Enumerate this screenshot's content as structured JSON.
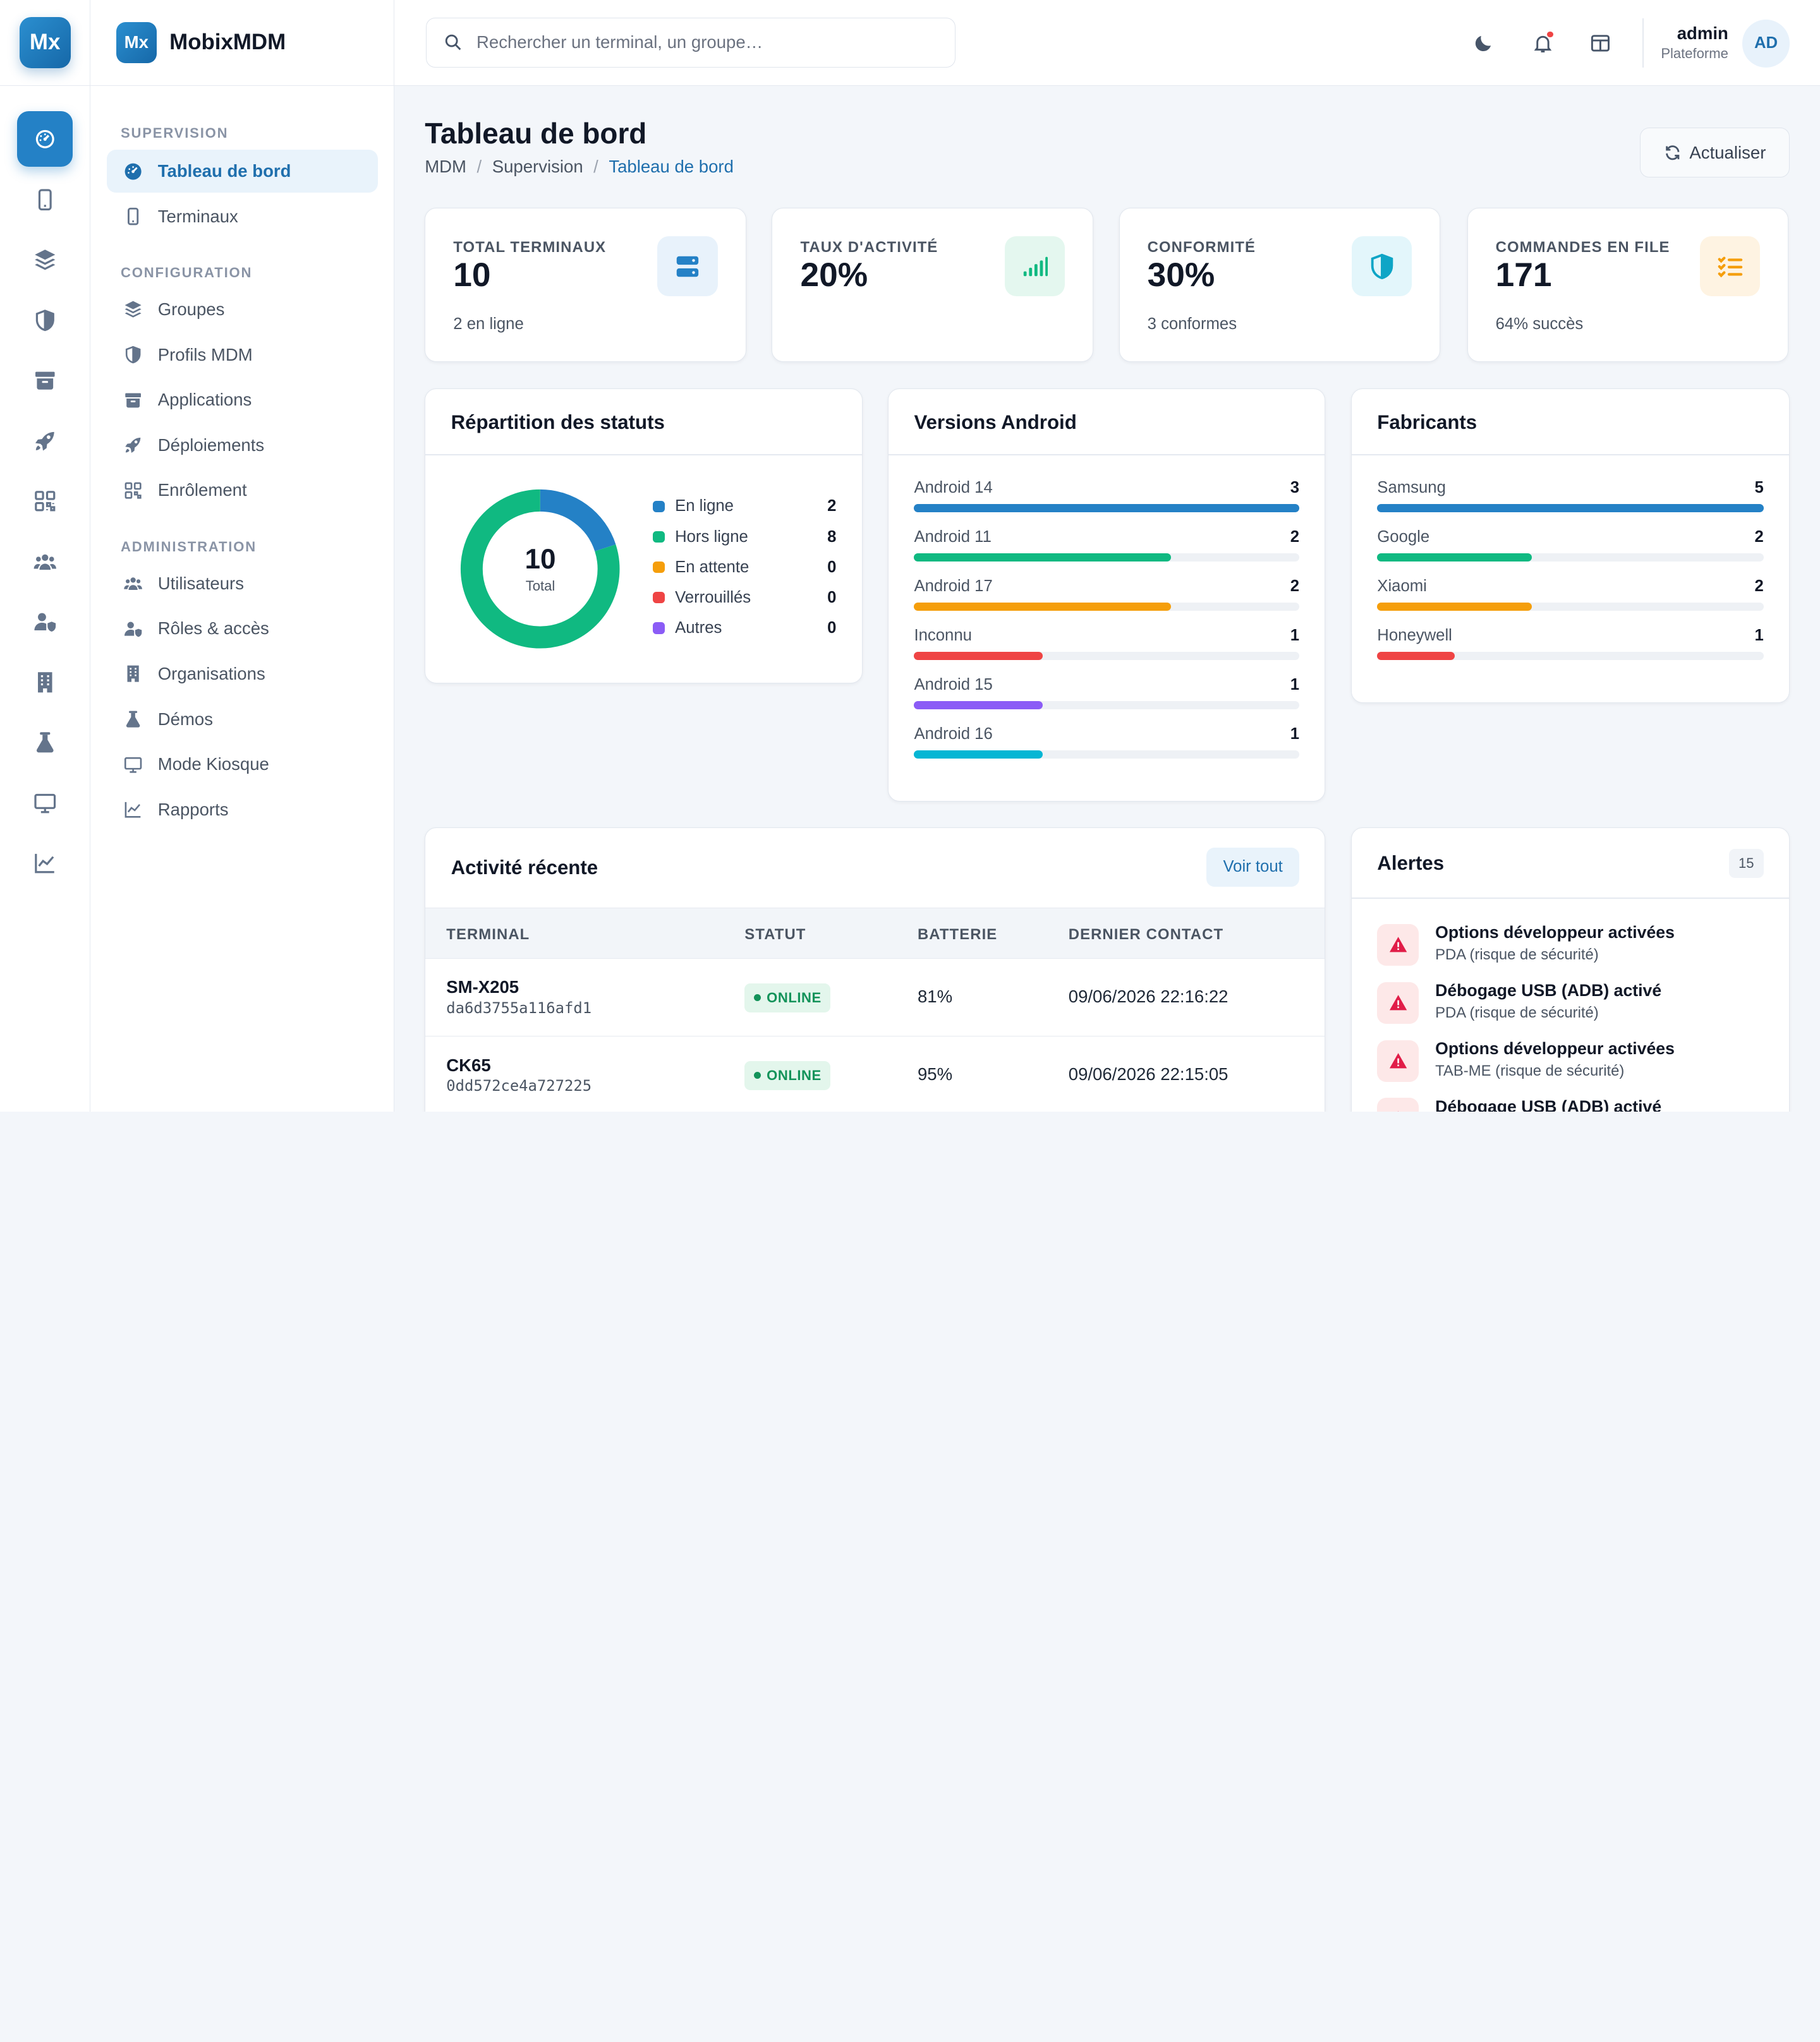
{
  "app": {
    "logo": "Mx",
    "name": "MobixMDM"
  },
  "nav": {
    "sections": [
      {
        "title": "SUPERVISION",
        "items": [
          "Tableau de bord",
          "Terminaux"
        ]
      },
      {
        "title": "CONFIGURATION",
        "items": [
          "Groupes",
          "Profils MDM",
          "Applications",
          "Déploiements",
          "Enrôlement"
        ]
      },
      {
        "title": "ADMINISTRATION",
        "items": [
          "Utilisateurs",
          "Rôles & accès",
          "Organisations",
          "Démos",
          "Mode Kiosque",
          "Rapports"
        ]
      }
    ],
    "active": "Tableau de bord"
  },
  "topbar": {
    "search_placeholder": "Rechercher un terminal, un groupe…",
    "icons": [
      "moon-icon",
      "bell-icon",
      "layout-icon"
    ],
    "user": {
      "name": "admin",
      "role": "Plateforme",
      "initials": "AD"
    }
  },
  "header": {
    "title": "Tableau de bord",
    "breadcrumb": [
      "MDM",
      "Supervision",
      "Tableau de bord"
    ],
    "refresh_label": "Actualiser"
  },
  "stats": [
    {
      "label": "TOTAL TERMINAUX",
      "value": "10",
      "sub": "2 en ligne",
      "icon": "server-icon",
      "color": "#2481c6",
      "bg": "#e8f2fb"
    },
    {
      "label": "TAUX D'ACTIVITÉ",
      "value": "20%",
      "sub": "",
      "icon": "signal-icon",
      "color": "#10b981",
      "bg": "#e4f7ef"
    },
    {
      "label": "CONFORMITÉ",
      "value": "30%",
      "sub": "3 conformes",
      "icon": "shield-icon",
      "color": "#0ea5c6",
      "bg": "#e3f6fb"
    },
    {
      "label": "COMMANDES EN FILE",
      "value": "171",
      "sub": "64% succès",
      "icon": "list-check-icon",
      "color": "#f59e0b",
      "bg": "#fef3e2"
    }
  ],
  "status_card": {
    "title": "Répartition des statuts",
    "total": "10",
    "total_label": "Total",
    "items": [
      {
        "label": "En ligne",
        "value": 2,
        "color": "#2481c6"
      },
      {
        "label": "Hors ligne",
        "value": 8,
        "color": "#10b981"
      },
      {
        "label": "En attente",
        "value": 0,
        "color": "#f59e0b"
      },
      {
        "label": "Verrouillés",
        "value": 0,
        "color": "#ef4444"
      },
      {
        "label": "Autres",
        "value": 0,
        "color": "#8b5cf6"
      }
    ]
  },
  "android_card": {
    "title": "Versions Android",
    "max": 3,
    "items": [
      {
        "label": "Android 14",
        "value": 3,
        "color": "#2481c6"
      },
      {
        "label": "Android 11",
        "value": 2,
        "color": "#10b981"
      },
      {
        "label": "Android 17",
        "value": 2,
        "color": "#f59e0b"
      },
      {
        "label": "Inconnu",
        "value": 1,
        "color": "#ef4444"
      },
      {
        "label": "Android 15",
        "value": 1,
        "color": "#8b5cf6"
      },
      {
        "label": "Android 16",
        "value": 1,
        "color": "#06b6d4"
      }
    ]
  },
  "maker_card": {
    "title": "Fabricants",
    "max": 5,
    "items": [
      {
        "label": "Samsung",
        "value": 5,
        "color": "#2481c6"
      },
      {
        "label": "Google",
        "value": 2,
        "color": "#10b981"
      },
      {
        "label": "Xiaomi",
        "value": 2,
        "color": "#f59e0b"
      },
      {
        "label": "Honeywell",
        "value": 1,
        "color": "#ef4444"
      }
    ]
  },
  "activity": {
    "title": "Activité récente",
    "view_all": "Voir tout",
    "columns": [
      "TERMINAL",
      "STATUT",
      "BATTERIE",
      "DERNIER CONTACT"
    ],
    "rows": [
      {
        "name": "SM-X205",
        "id": "da6d3755a116afd1",
        "status": "ONLINE",
        "battery": "81%",
        "last": "09/06/2026 22:16:22"
      },
      {
        "name": "CK65",
        "id": "0dd572ce4a727225",
        "status": "ONLINE",
        "battery": "95%",
        "last": "09/06/2026 22:15:05"
      }
    ]
  },
  "alerts": {
    "title": "Alertes",
    "count": "15",
    "items": [
      {
        "title": "Options développeur activées",
        "sub": "PDA (risque de sécurité)"
      },
      {
        "title": "Débogage USB (ADB) activé",
        "sub": "PDA (risque de sécurité)"
      },
      {
        "title": "Options développeur activées",
        "sub": "TAB-ME (risque de sécurité)"
      },
      {
        "title": "Débogage USB (ADB) activé",
        "sub": ""
      }
    ]
  }
}
